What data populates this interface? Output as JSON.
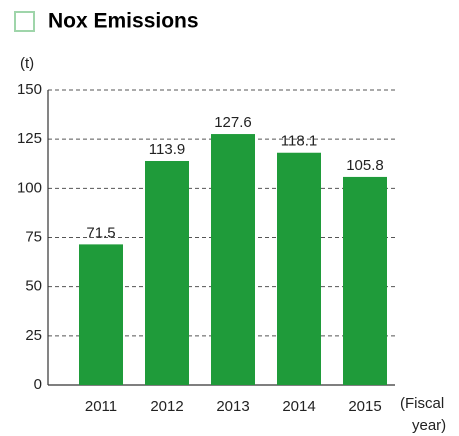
{
  "chart_data": {
    "type": "bar",
    "title": "Nox Emissions",
    "y_label": "(t)",
    "x_label": [
      "(Fiscal",
      "year)"
    ],
    "categories": [
      "2011",
      "2012",
      "2013",
      "2014",
      "2015"
    ],
    "values": [
      71.5,
      113.9,
      127.6,
      118.1,
      105.8
    ],
    "color": "#1f9b3a",
    "ylim": [
      0,
      150
    ],
    "yticks": [
      0,
      25,
      50,
      75,
      100,
      125,
      150
    ],
    "grid": true
  }
}
